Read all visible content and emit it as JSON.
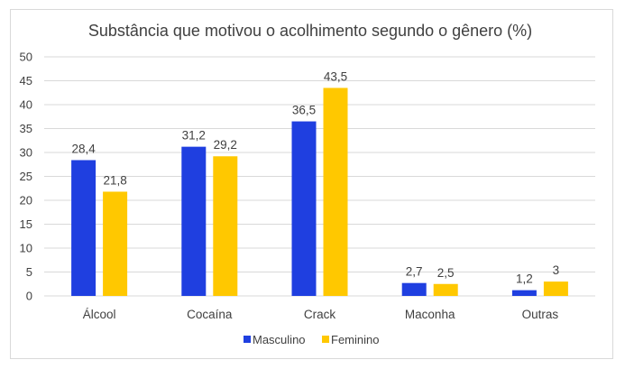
{
  "chart_data": {
    "type": "bar",
    "title": "Substância que motivou o acolhimento segundo o gênero (%)",
    "categories": [
      "Álcool",
      "Cocaína",
      "Crack",
      "Maconha",
      "Outras"
    ],
    "series": [
      {
        "name": "Masculino",
        "values": [
          28.4,
          31.2,
          36.5,
          2.7,
          1.2
        ],
        "labels": [
          "28,4",
          "31,2",
          "36,5",
          "2,7",
          "1,2"
        ],
        "color": "#1f3fe0"
      },
      {
        "name": "Feminino",
        "values": [
          21.8,
          29.2,
          43.5,
          2.5,
          3
        ],
        "labels": [
          "21,8",
          "29,2",
          "43,5",
          "2,5",
          "3"
        ],
        "color": "#ffc800"
      }
    ],
    "ylim": [
      0,
      50
    ],
    "yticks": [
      0,
      5,
      10,
      15,
      20,
      25,
      30,
      35,
      40,
      45,
      50
    ],
    "grid": true,
    "legend_position": "bottom"
  }
}
